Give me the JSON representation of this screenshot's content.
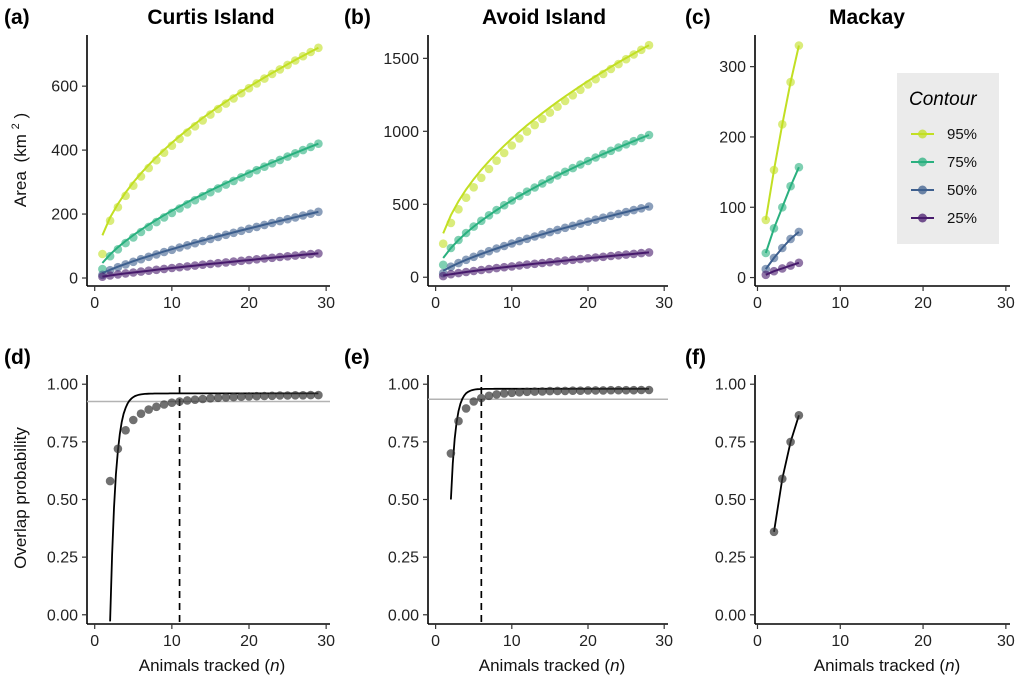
{
  "figure": {
    "y_label_area": "Area",
    "y_label_area_unit": "(km",
    "y_label_area_sup": "2",
    "y_label_area_close": ")",
    "y_label_overlap": "Overlap probability",
    "x_label_main": "Animals tracked (",
    "x_label_var": "n",
    "x_label_close": ")",
    "legend": {
      "title": "Contour",
      "items": [
        {
          "label": "95%",
          "color": "#c2df23"
        },
        {
          "label": "75%",
          "color": "#2ab07f"
        },
        {
          "label": "50%",
          "color": "#3e5f8e"
        },
        {
          "label": "25%",
          "color": "#481b6d"
        }
      ]
    }
  },
  "chart_data": [
    {
      "id": "a",
      "tag": "(a)",
      "title": "Curtis Island",
      "type": "line",
      "xlim": [
        -1,
        30.5
      ],
      "ylim": [
        -25,
        760
      ],
      "xticks": [
        0,
        10,
        20,
        30
      ],
      "yticks": [
        0,
        200,
        400,
        600
      ],
      "series": [
        {
          "name": "95%",
          "contour": 95,
          "xmax": 29,
          "pt_exp": 0.52,
          "pt_max": 720,
          "pt_first": 75,
          "line_max": 720,
          "line_exp": 0.5
        },
        {
          "name": "75%",
          "contour": 75,
          "xmax": 29,
          "pt_exp": 0.68,
          "pt_max": 420,
          "pt_first": 28,
          "line_max": 420,
          "line_exp": 0.65
        },
        {
          "name": "50%",
          "contour": 50,
          "xmax": 29,
          "pt_exp": 0.8,
          "pt_max": 207,
          "pt_first": 10,
          "line_max": 207,
          "line_exp": 0.78
        },
        {
          "name": "25%",
          "contour": 25,
          "xmax": 29,
          "pt_exp": 0.85,
          "pt_max": 77,
          "pt_first": 4,
          "line_max": 77,
          "line_exp": 0.85
        }
      ]
    },
    {
      "id": "b",
      "tag": "(b)",
      "title": "Avoid Island",
      "type": "line",
      "xlim": [
        -1,
        30.5
      ],
      "ylim": [
        -60,
        1660
      ],
      "xticks": [
        0,
        10,
        20,
        30
      ],
      "yticks": [
        0,
        500,
        1000,
        1500
      ],
      "series": [
        {
          "name": "95%",
          "contour": 95,
          "xmax": 28,
          "pt_exp": 0.55,
          "pt_max": 1590,
          "pt_first": 230,
          "line_max": 1590,
          "line_exp": 0.5
        },
        {
          "name": "75%",
          "contour": 75,
          "xmax": 28,
          "pt_exp": 0.6,
          "pt_max": 975,
          "pt_first": 85,
          "line_max": 975,
          "line_exp": 0.6
        },
        {
          "name": "50%",
          "contour": 50,
          "xmax": 28,
          "pt_exp": 0.72,
          "pt_max": 485,
          "pt_first": 28,
          "line_max": 485,
          "line_exp": 0.72
        },
        {
          "name": "25%",
          "contour": 25,
          "xmax": 28,
          "pt_exp": 0.8,
          "pt_max": 170,
          "pt_first": 8,
          "line_max": 170,
          "line_exp": 0.8
        }
      ]
    },
    {
      "id": "c",
      "tag": "(c)",
      "title": "Mackay",
      "type": "line",
      "xlim": [
        -0.3,
        30.5
      ],
      "ylim": [
        -12,
        345
      ],
      "xticks": [
        0,
        10,
        20,
        30
      ],
      "yticks": [
        0,
        100,
        200,
        300
      ],
      "series": [
        {
          "name": "95%",
          "contour": 95,
          "x": [
            1,
            2,
            3,
            4,
            5
          ],
          "values": [
            82,
            153,
            218,
            278,
            330
          ]
        },
        {
          "name": "75%",
          "contour": 75,
          "x": [
            1,
            2,
            3,
            4,
            5
          ],
          "values": [
            35,
            70,
            100,
            130,
            157
          ]
        },
        {
          "name": "50%",
          "contour": 50,
          "x": [
            1,
            2,
            3,
            4,
            5
          ],
          "values": [
            12,
            28,
            42,
            55,
            65
          ]
        },
        {
          "name": "25%",
          "contour": 25,
          "x": [
            1,
            2,
            3,
            4,
            5
          ],
          "values": [
            4,
            9,
            13,
            17,
            21
          ]
        }
      ]
    },
    {
      "id": "d",
      "tag": "(d)",
      "type": "scatter",
      "xlim": [
        -1,
        30.5
      ],
      "ylim": [
        -0.04,
        1.04
      ],
      "xticks": [
        0,
        10,
        20,
        30
      ],
      "yticks": [
        0.0,
        0.25,
        0.5,
        0.75,
        1.0
      ],
      "x": [
        2,
        3,
        4,
        5,
        6,
        7,
        8,
        9,
        10,
        11,
        12,
        13,
        14,
        15,
        16,
        17,
        18,
        19,
        20,
        21,
        22,
        23,
        24,
        25,
        26,
        27,
        28,
        29
      ],
      "points": [
        0.58,
        0.72,
        0.8,
        0.845,
        0.872,
        0.89,
        0.902,
        0.912,
        0.92,
        0.925,
        0.93,
        0.933,
        0.936,
        0.939,
        0.941,
        0.943,
        0.944,
        0.946,
        0.947,
        0.948,
        0.949,
        0.95,
        0.951,
        0.951,
        0.952,
        0.952,
        0.953,
        0.953
      ],
      "curve": {
        "asymptote": 0.96,
        "a": 1.74,
        "b": 1.38,
        "x0": 2
      },
      "hline": 0.925,
      "vline": 11
    },
    {
      "id": "e",
      "tag": "(e)",
      "type": "scatter",
      "xlim": [
        -1,
        30.5
      ],
      "ylim": [
        -0.04,
        1.04
      ],
      "xticks": [
        0,
        10,
        20,
        30
      ],
      "yticks": [
        0.0,
        0.25,
        0.5,
        0.75,
        1.0
      ],
      "x": [
        2,
        3,
        4,
        5,
        6,
        7,
        8,
        9,
        10,
        11,
        12,
        13,
        14,
        15,
        16,
        17,
        18,
        19,
        20,
        21,
        22,
        23,
        24,
        25,
        26,
        27,
        28
      ],
      "points": [
        0.7,
        0.84,
        0.895,
        0.925,
        0.94,
        0.95,
        0.956,
        0.96,
        0.963,
        0.965,
        0.967,
        0.968,
        0.969,
        0.97,
        0.971,
        0.971,
        0.972,
        0.972,
        0.973,
        0.973,
        0.973,
        0.974,
        0.974,
        0.974,
        0.974,
        0.975,
        0.975
      ],
      "curve": {
        "asymptote": 0.98,
        "a": 0.9,
        "b": 1.6,
        "x0": 2
      },
      "hline": 0.935,
      "vline": 6
    },
    {
      "id": "f",
      "tag": "(f)",
      "type": "scatter",
      "xlim": [
        -0.3,
        30.5
      ],
      "ylim": [
        -0.04,
        1.04
      ],
      "xticks": [
        0,
        10,
        20,
        30
      ],
      "yticks": [
        0.0,
        0.25,
        0.5,
        0.75,
        1.0
      ],
      "x": [
        2,
        3,
        4,
        5
      ],
      "points": [
        0.36,
        0.59,
        0.75,
        0.865
      ],
      "line": [
        0.36,
        0.59,
        0.75,
        0.865
      ]
    }
  ]
}
